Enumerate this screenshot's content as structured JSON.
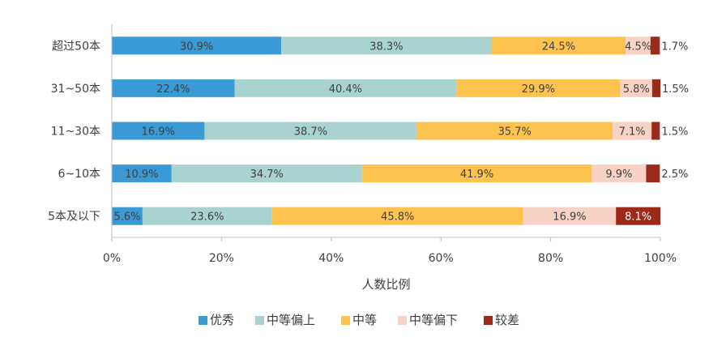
{
  "chart_data": {
    "type": "bar",
    "orientation": "horizontal",
    "stacked": true,
    "categories": [
      "超过50本",
      "31~50本",
      "11~30本",
      "6~10本",
      "5本及以下"
    ],
    "series": [
      {
        "name": "优秀",
        "color": "#3A9AD6",
        "values": [
          30.9,
          22.4,
          16.9,
          10.9,
          5.6
        ],
        "labels": [
          "30.9%",
          "22.4%",
          "16.9%",
          "10.9%",
          "5.6%"
        ]
      },
      {
        "name": "中等偏上",
        "color": "#A9D3D1",
        "values": [
          38.3,
          40.4,
          38.7,
          34.7,
          23.6
        ],
        "labels": [
          "38.3%",
          "40.4%",
          "38.7%",
          "34.7%",
          "23.6%"
        ]
      },
      {
        "name": "中等",
        "color": "#FEC34F",
        "values": [
          24.5,
          29.9,
          35.7,
          41.9,
          45.8
        ],
        "labels": [
          "24.5%",
          "29.9%",
          "35.7%",
          "41.9%",
          "45.8%"
        ]
      },
      {
        "name": "中等偏下",
        "color": "#F8D2C4",
        "values": [
          4.5,
          5.8,
          7.1,
          9.9,
          16.9
        ],
        "labels": [
          "4.5%",
          "5.8%",
          "7.1%",
          "9.9%",
          "16.9%"
        ]
      },
      {
        "name": "较差",
        "color": "#9C2A19",
        "values": [
          1.7,
          1.5,
          1.5,
          2.5,
          8.1
        ],
        "labels": [
          "1.7%",
          "1.5%",
          "1.5%",
          "2.5%",
          "8.1%"
        ]
      }
    ],
    "xlabel": "人数比例",
    "xlim": [
      0,
      100
    ],
    "xticks": [
      "0%",
      "20%",
      "40%",
      "60%",
      "80%",
      "100%"
    ],
    "xtick_values": [
      0,
      20,
      40,
      60,
      80,
      100
    ],
    "grid": false,
    "legend": "bottom"
  }
}
